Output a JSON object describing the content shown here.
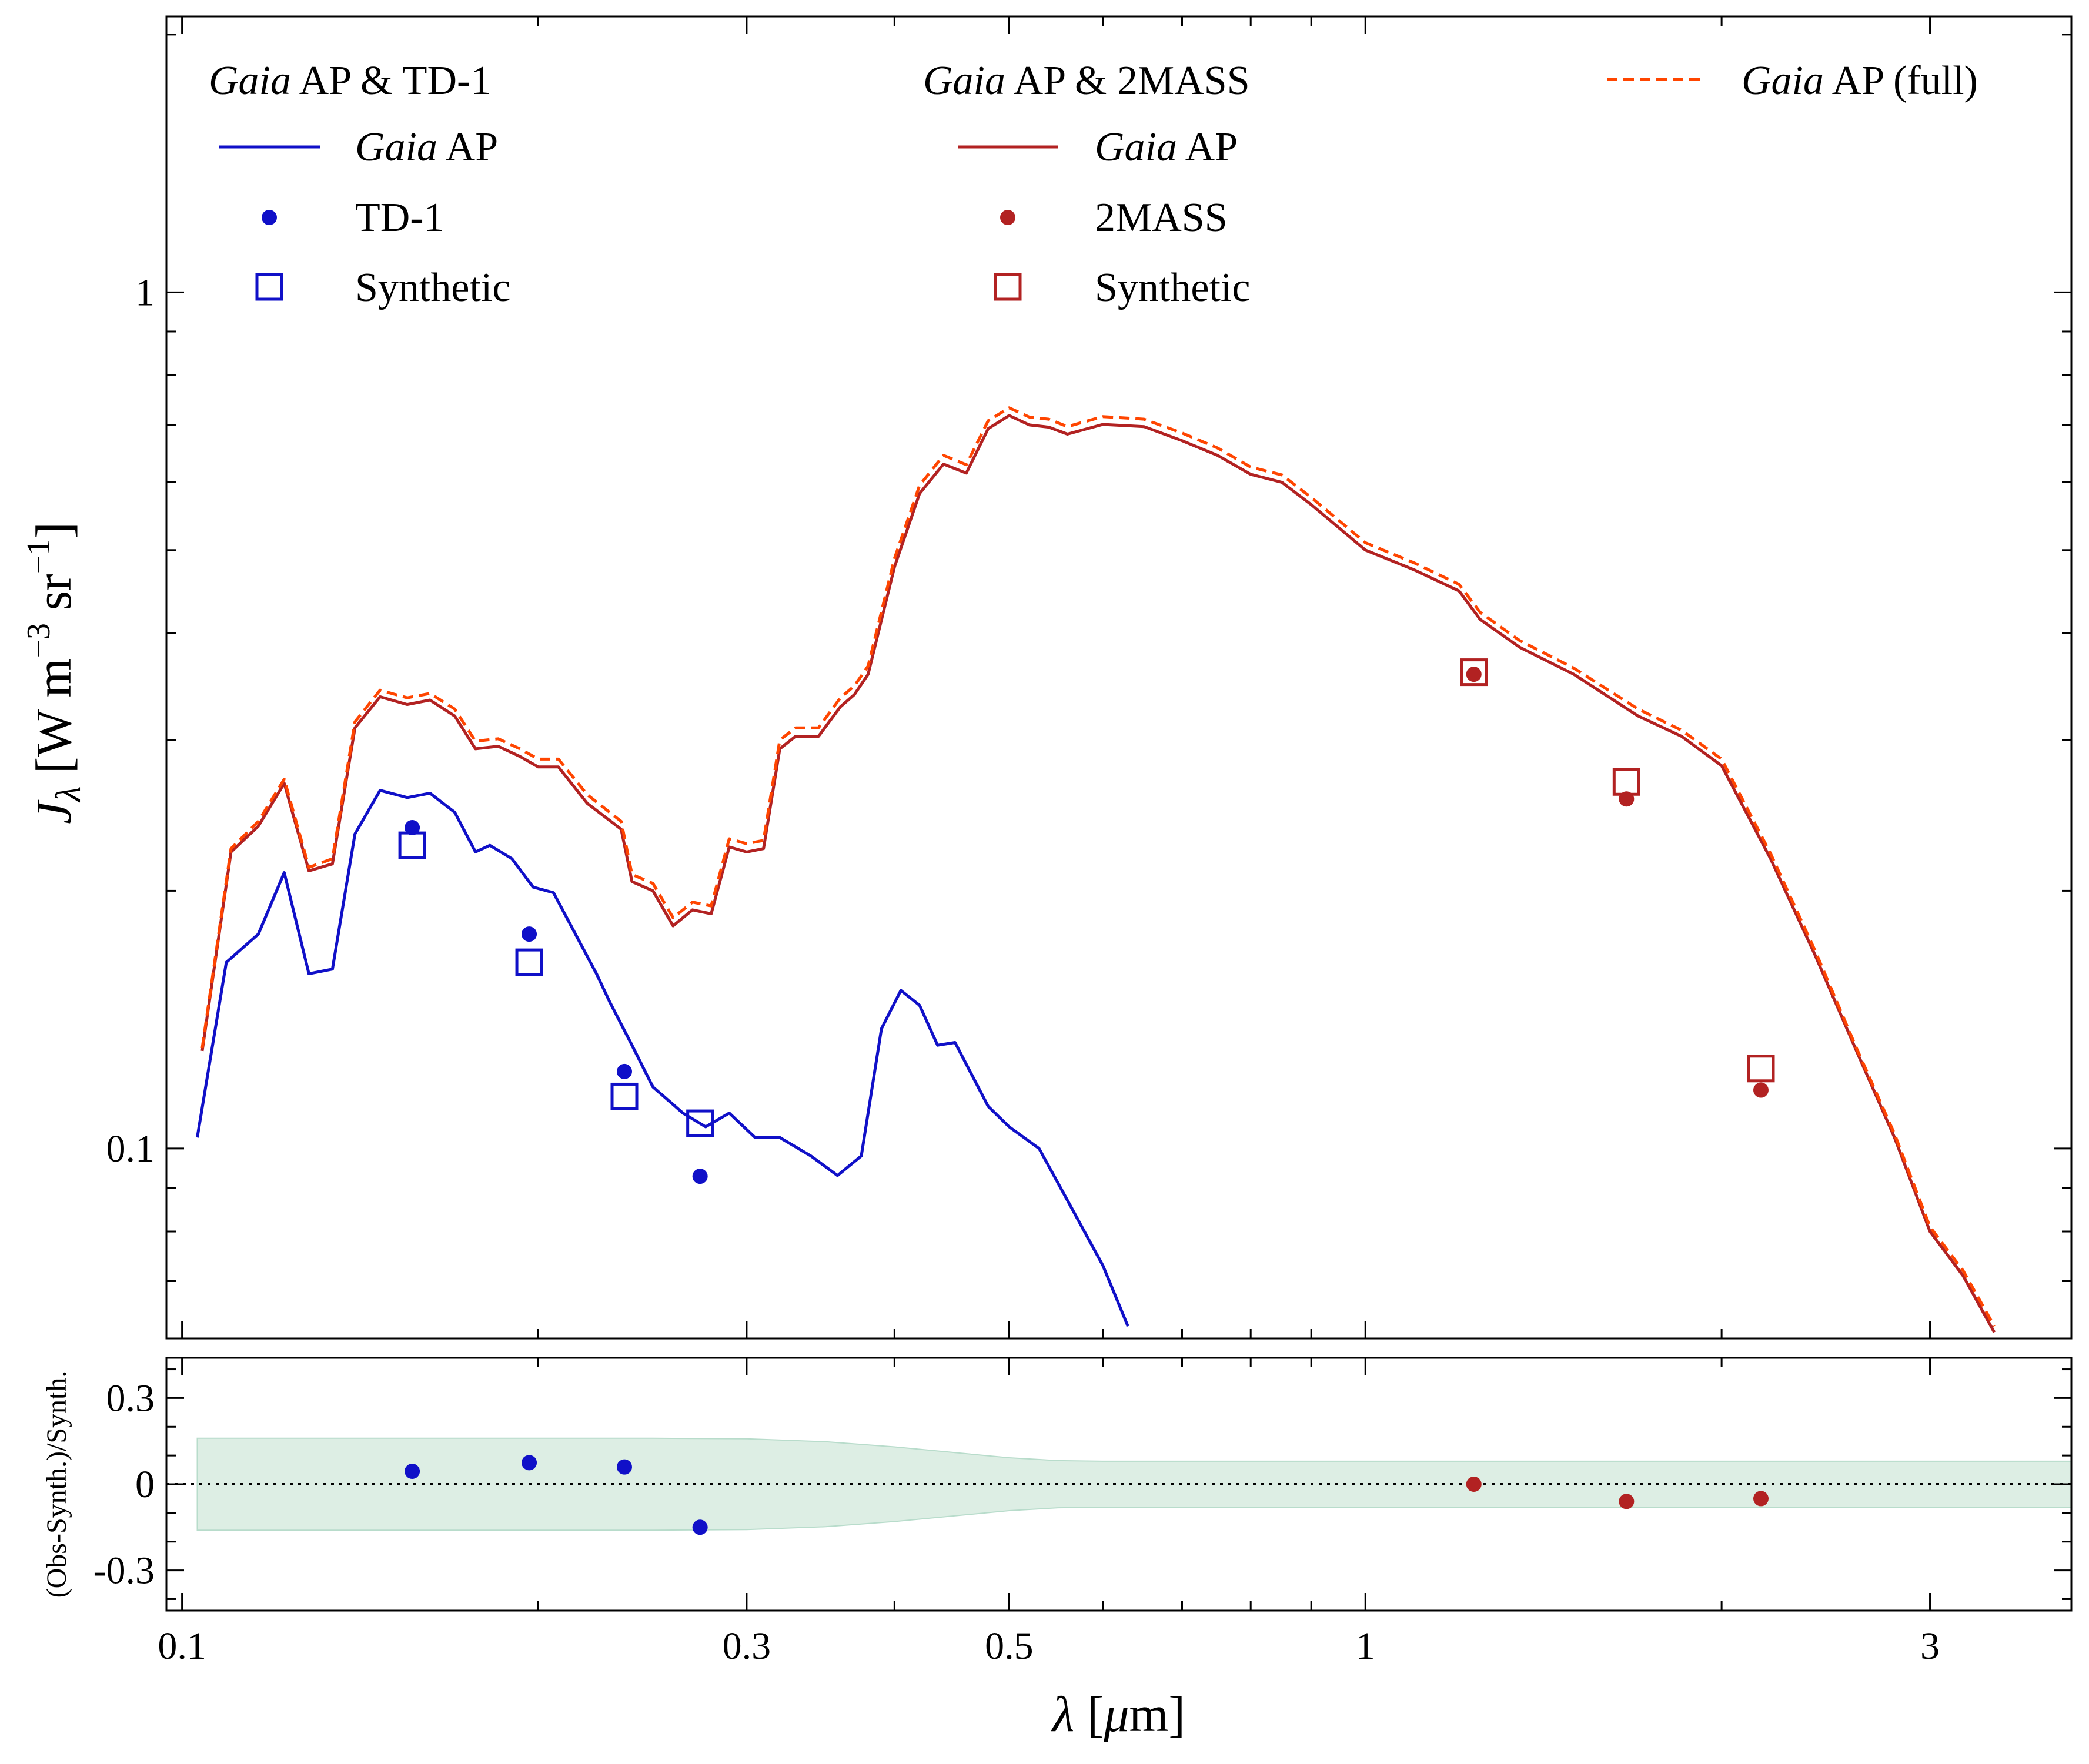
{
  "chart_data": [
    {
      "type": "line",
      "panel": "main",
      "xscale": "log",
      "yscale": "log",
      "xlim": [
        0.097,
        3.95
      ],
      "ylim": [
        0.06,
        2.1
      ],
      "xticks": [
        0.1,
        0.3,
        0.5,
        1,
        3
      ],
      "xtick_labels": [
        "0.1",
        "0.3",
        "0.5",
        "1",
        "3"
      ],
      "yticks": [
        0.1,
        1
      ],
      "ytick_labels": [
        "0.1",
        "1"
      ],
      "ylabel_main": "J",
      "ylabel_sub": "λ",
      "ylabel_unit_pre": " [W m",
      "ylabel_exp1": "−3",
      "ylabel_unit_mid": " sr",
      "ylabel_exp2": "−1",
      "ylabel_unit_post": "]",
      "grid": false,
      "legend": {
        "groups": [
          {
            "title_italic": "Gaia",
            "title_rest": " AP & TD-1",
            "entries": [
              {
                "italic": "Gaia",
                "rest": " AP",
                "style": "line",
                "color": "#1010c8"
              },
              {
                "italic": "",
                "rest": "TD-1",
                "style": "dot",
                "color": "#1010c8"
              },
              {
                "italic": "",
                "rest": "Synthetic",
                "style": "square",
                "color": "#1010c8"
              }
            ]
          },
          {
            "title_italic": "Gaia",
            "title_rest": " AP & 2MASS",
            "entries": [
              {
                "italic": "Gaia",
                "rest": " AP",
                "style": "line",
                "color": "#b22222"
              },
              {
                "italic": "",
                "rest": "2MASS",
                "style": "dot",
                "color": "#b22222"
              },
              {
                "italic": "",
                "rest": "Synthetic",
                "style": "square",
                "color": "#b22222"
              }
            ]
          },
          {
            "title_italic": "",
            "title_rest": "",
            "entries": [
              {
                "italic": "Gaia",
                "rest": " AP (full)",
                "style": "dashed",
                "color": "#ff4500"
              }
            ]
          }
        ]
      },
      "series": [
        {
          "name": "Gaia AP (TD-1)",
          "style": "line",
          "color": "#1010c8",
          "x": [
            0.103,
            0.109,
            0.116,
            0.122,
            0.128,
            0.134,
            0.14,
            0.147,
            0.155,
            0.162,
            0.17,
            0.177,
            0.182,
            0.19,
            0.198,
            0.206,
            0.215,
            0.224,
            0.23,
            0.24,
            0.25,
            0.265,
            0.277,
            0.29,
            0.305,
            0.32,
            0.34,
            0.358,
            0.375,
            0.39,
            0.405,
            0.42,
            0.435,
            0.45,
            0.48,
            0.5,
            0.53,
            0.56,
            0.6,
            0.63
          ],
          "y": [
            0.103,
            0.165,
            0.178,
            0.21,
            0.16,
            0.162,
            0.233,
            0.262,
            0.257,
            0.26,
            0.247,
            0.222,
            0.226,
            0.218,
            0.202,
            0.199,
            0.178,
            0.16,
            0.148,
            0.132,
            0.118,
            0.11,
            0.106,
            0.11,
            0.103,
            0.103,
            0.098,
            0.093,
            0.098,
            0.138,
            0.153,
            0.147,
            0.132,
            0.133,
            0.112,
            0.106,
            0.1,
            0.087,
            0.073,
            0.062
          ]
        },
        {
          "name": "Gaia AP (2MASS)",
          "style": "line",
          "color": "#b22222",
          "x": [
            0.104,
            0.11,
            0.116,
            0.122,
            0.128,
            0.134,
            0.14,
            0.147,
            0.155,
            0.162,
            0.17,
            0.177,
            0.185,
            0.193,
            0.2,
            0.208,
            0.22,
            0.235,
            0.24,
            0.25,
            0.26,
            0.27,
            0.28,
            0.29,
            0.3,
            0.31,
            0.32,
            0.33,
            0.345,
            0.36,
            0.37,
            0.38,
            0.4,
            0.42,
            0.44,
            0.46,
            0.48,
            0.5,
            0.52,
            0.54,
            0.56,
            0.6,
            0.65,
            0.7,
            0.75,
            0.8,
            0.85,
            0.9,
            1.0,
            1.1,
            1.2,
            1.25,
            1.35,
            1.5,
            1.7,
            1.85,
            2.0,
            2.2,
            2.4,
            2.6,
            2.8,
            3.0,
            3.2,
            3.4
          ],
          "y": [
            0.13,
            0.222,
            0.238,
            0.267,
            0.211,
            0.215,
            0.31,
            0.337,
            0.33,
            0.334,
            0.32,
            0.293,
            0.295,
            0.287,
            0.279,
            0.279,
            0.253,
            0.236,
            0.205,
            0.2,
            0.182,
            0.19,
            0.188,
            0.225,
            0.222,
            0.224,
            0.293,
            0.303,
            0.303,
            0.328,
            0.339,
            0.358,
            0.478,
            0.582,
            0.63,
            0.615,
            0.693,
            0.718,
            0.7,
            0.696,
            0.683,
            0.701,
            0.697,
            0.671,
            0.645,
            0.613,
            0.6,
            0.565,
            0.5,
            0.474,
            0.448,
            0.415,
            0.385,
            0.358,
            0.32,
            0.303,
            0.28,
            0.218,
            0.168,
            0.13,
            0.103,
            0.08,
            0.071,
            0.061
          ]
        },
        {
          "name": "Gaia AP (full)",
          "style": "dashed",
          "color": "#ff4500",
          "x": [
            0.104,
            0.11,
            0.116,
            0.122,
            0.128,
            0.134,
            0.14,
            0.147,
            0.155,
            0.162,
            0.17,
            0.177,
            0.185,
            0.193,
            0.2,
            0.208,
            0.22,
            0.235,
            0.24,
            0.25,
            0.26,
            0.27,
            0.28,
            0.29,
            0.3,
            0.31,
            0.32,
            0.33,
            0.345,
            0.36,
            0.37,
            0.38,
            0.4,
            0.42,
            0.44,
            0.46,
            0.48,
            0.5,
            0.52,
            0.54,
            0.56,
            0.6,
            0.65,
            0.7,
            0.75,
            0.8,
            0.85,
            0.9,
            1.0,
            1.1,
            1.2,
            1.25,
            1.35,
            1.5,
            1.7,
            1.85,
            2.0,
            2.2,
            2.4,
            2.6,
            2.8,
            3.0,
            3.2,
            3.4
          ],
          "y": [
            0.131,
            0.224,
            0.241,
            0.27,
            0.213,
            0.218,
            0.315,
            0.343,
            0.336,
            0.34,
            0.326,
            0.299,
            0.301,
            0.293,
            0.285,
            0.285,
            0.259,
            0.241,
            0.209,
            0.204,
            0.186,
            0.194,
            0.192,
            0.23,
            0.227,
            0.229,
            0.3,
            0.31,
            0.31,
            0.336,
            0.347,
            0.366,
            0.489,
            0.595,
            0.645,
            0.629,
            0.708,
            0.733,
            0.715,
            0.711,
            0.697,
            0.716,
            0.711,
            0.685,
            0.658,
            0.625,
            0.612,
            0.576,
            0.51,
            0.483,
            0.456,
            0.423,
            0.392,
            0.364,
            0.326,
            0.308,
            0.285,
            0.221,
            0.17,
            0.131,
            0.104,
            0.081,
            0.072,
            0.062
          ]
        },
        {
          "name": "TD-1",
          "style": "dot",
          "color": "#1010c8",
          "x": [
            0.1565,
            0.1965,
            0.2365,
            0.274
          ],
          "y": [
            0.237,
            0.178,
            0.123,
            0.0928
          ]
        },
        {
          "name": "Synthetic (TD-1)",
          "style": "square",
          "color": "#1010c8",
          "x": [
            0.1565,
            0.1965,
            0.2365,
            0.274
          ],
          "y": [
            0.226,
            0.165,
            0.115,
            0.107
          ]
        },
        {
          "name": "2MASS",
          "style": "dot",
          "color": "#b22222",
          "x": [
            1.235,
            1.662,
            2.159
          ],
          "y": [
            0.358,
            0.256,
            0.117
          ]
        },
        {
          "name": "Synthetic (2MASS)",
          "style": "square",
          "color": "#b22222",
          "x": [
            1.235,
            1.662,
            2.159
          ],
          "y": [
            0.36,
            0.268,
            0.124
          ]
        }
      ]
    },
    {
      "type": "scatter",
      "panel": "residual",
      "xscale": "log",
      "xlim": [
        0.097,
        3.95
      ],
      "ylim": [
        -0.44,
        0.44
      ],
      "xticks": [
        0.1,
        0.3,
        0.5,
        1,
        3
      ],
      "xtick_labels": [
        "0.1",
        "0.3",
        "0.5",
        "1",
        "3"
      ],
      "yticks": [
        0.3,
        0,
        -0.3
      ],
      "ytick_labels": [
        "0.3",
        "0",
        "-0.3"
      ],
      "ylabel": "(Obs-Synth.)/Synth.",
      "xlabel_sym": "λ",
      "xlabel_unit_pre": " [",
      "xlabel_mu": "μ",
      "xlabel_unit_post": "m]",
      "zero_line": "dotted",
      "band": {
        "color": "#ddeee4",
        "edge_color": "#b8dccb",
        "x": [
          0.103,
          0.15,
          0.2,
          0.25,
          0.3,
          0.35,
          0.4,
          0.45,
          0.5,
          0.55,
          0.6,
          0.7,
          0.8,
          1.0,
          2.0,
          3.95
        ],
        "upper": [
          0.16,
          0.16,
          0.16,
          0.16,
          0.158,
          0.148,
          0.13,
          0.11,
          0.092,
          0.082,
          0.08,
          0.08,
          0.08,
          0.08,
          0.08,
          0.08
        ],
        "lower": [
          -0.16,
          -0.16,
          -0.16,
          -0.16,
          -0.158,
          -0.148,
          -0.13,
          -0.11,
          -0.092,
          -0.082,
          -0.08,
          -0.08,
          -0.08,
          -0.08,
          -0.08,
          -0.08
        ]
      },
      "series": [
        {
          "name": "TD-1",
          "color": "#1010c8",
          "x": [
            0.1565,
            0.1965,
            0.2365,
            0.274
          ],
          "y": [
            0.045,
            0.075,
            0.06,
            -0.15
          ]
        },
        {
          "name": "2MASS",
          "color": "#b22222",
          "x": [
            1.235,
            1.662,
            2.159
          ],
          "y": [
            0.0,
            -0.06,
            -0.05
          ]
        }
      ]
    }
  ]
}
